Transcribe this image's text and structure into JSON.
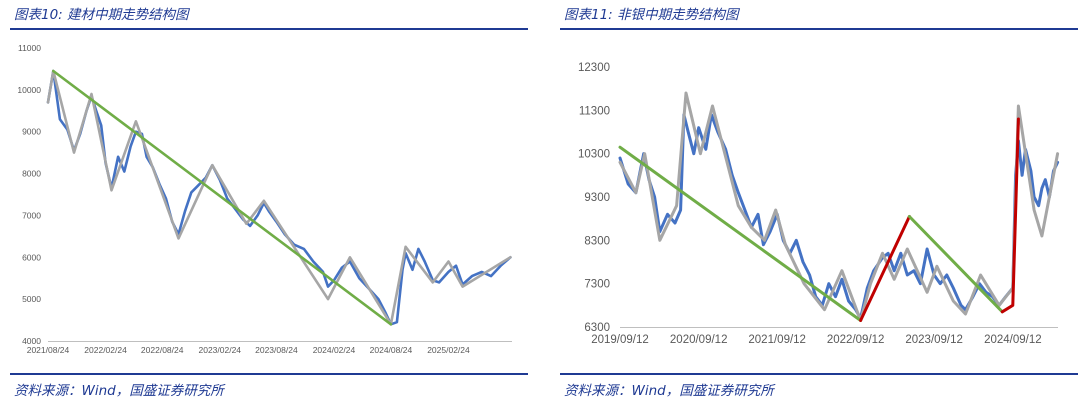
{
  "left": {
    "figure_title": "图表10:  建材中期走势结构图",
    "source": "资料来源：Wind，国盛证券研究所"
  },
  "right": {
    "figure_title": "图表11:  非银中期走势结构图",
    "source": "资料来源：Wind，国盛证券研究所"
  },
  "colors": {
    "price": "#4472c4",
    "structure": "#a6a6a6",
    "trend_down": "#70ad47",
    "trend_up": "#c00000",
    "title": "#1f3a93"
  },
  "chart_data": [
    {
      "type": "line",
      "title": "",
      "x_ticks": [
        "2021/08/24",
        "2022/02/24",
        "2022/08/24",
        "2023/02/24",
        "2023/08/24",
        "2024/02/24",
        "2024/08/24",
        "2025/02/24"
      ],
      "y_ticks": [
        4000,
        5000,
        6000,
        7000,
        8000,
        9000,
        10000,
        11000
      ],
      "ylim": [
        4000,
        11000
      ],
      "xlim": [
        "2021/08/24",
        "2025/09/15"
      ],
      "grid": false,
      "series": [
        {
          "role": "price",
          "color": "#4472c4",
          "points": [
            [
              "2021/08/24",
              9700
            ],
            [
              "2021/09/10",
              10450
            ],
            [
              "2021/10/01",
              9300
            ],
            [
              "2021/10/25",
              9050
            ],
            [
              "2021/11/15",
              8550
            ],
            [
              "2021/12/05",
              8950
            ],
            [
              "2021/12/25",
              9500
            ],
            [
              "2022/01/10",
              9850
            ],
            [
              "2022/01/25",
              9500
            ],
            [
              "2022/02/10",
              9150
            ],
            [
              "2022/02/24",
              8250
            ],
            [
              "2022/03/15",
              7650
            ],
            [
              "2022/04/05",
              8400
            ],
            [
              "2022/04/25",
              8050
            ],
            [
              "2022/05/15",
              8650
            ],
            [
              "2022/06/01",
              9000
            ],
            [
              "2022/06/20",
              8950
            ],
            [
              "2022/07/05",
              8400
            ],
            [
              "2022/07/25",
              8150
            ],
            [
              "2022/08/15",
              7750
            ],
            [
              "2022/09/05",
              7400
            ],
            [
              "2022/09/25",
              6850
            ],
            [
              "2022/10/15",
              6550
            ],
            [
              "2022/11/05",
              7100
            ],
            [
              "2022/11/25",
              7550
            ],
            [
              "2022/12/15",
              7700
            ],
            [
              "2023/01/10",
              7900
            ],
            [
              "2023/01/31",
              8200
            ],
            [
              "2023/02/24",
              7850
            ],
            [
              "2023/03/20",
              7400
            ],
            [
              "2023/04/15",
              7150
            ],
            [
              "2023/05/10",
              6900
            ],
            [
              "2023/06/01",
              6750
            ],
            [
              "2023/06/25",
              7000
            ],
            [
              "2023/07/15",
              7300
            ],
            [
              "2023/07/31",
              7100
            ],
            [
              "2023/08/24",
              6850
            ],
            [
              "2023/09/20",
              6550
            ],
            [
              "2023/10/20",
              6300
            ],
            [
              "2023/11/20",
              6200
            ],
            [
              "2023/12/20",
              5900
            ],
            [
              "2024/01/20",
              5650
            ],
            [
              "2024/02/05",
              5300
            ],
            [
              "2024/02/24",
              5450
            ],
            [
              "2024/03/20",
              5750
            ],
            [
              "2024/04/15",
              5900
            ],
            [
              "2024/05/15",
              5500
            ],
            [
              "2024/06/15",
              5250
            ],
            [
              "2024/07/15",
              5000
            ],
            [
              "2024/08/05",
              4700
            ],
            [
              "2024/08/24",
              4400
            ],
            [
              "2024/09/12",
              4450
            ],
            [
              "2024/09/30",
              5700
            ],
            [
              "2024/10/10",
              6100
            ],
            [
              "2024/11/01",
              5700
            ],
            [
              "2024/11/20",
              6200
            ],
            [
              "2024/12/10",
              5900
            ],
            [
              "2025/01/05",
              5450
            ],
            [
              "2025/01/25",
              5400
            ],
            [
              "2025/02/24",
              5650
            ],
            [
              "2025/03/20",
              5800
            ],
            [
              "2025/04/10",
              5350
            ],
            [
              "2025/05/10",
              5550
            ],
            [
              "2025/06/10",
              5650
            ],
            [
              "2025/07/10",
              5550
            ],
            [
              "2025/08/10",
              5800
            ],
            [
              "2025/09/10",
              6000
            ]
          ]
        },
        {
          "role": "structure",
          "color": "#a6a6a6",
          "points": [
            [
              "2021/08/24",
              9700
            ],
            [
              "2021/09/10",
              10450
            ],
            [
              "2021/11/15",
              8500
            ],
            [
              "2022/01/10",
              9900
            ],
            [
              "2022/03/15",
              7600
            ],
            [
              "2022/06/01",
              9250
            ],
            [
              "2022/10/15",
              6450
            ],
            [
              "2023/01/31",
              8200
            ],
            [
              "2023/05/20",
              6800
            ],
            [
              "2023/07/15",
              7350
            ],
            [
              "2024/02/05",
              5000
            ],
            [
              "2024/04/15",
              6000
            ],
            [
              "2024/08/24",
              4400
            ],
            [
              "2024/10/10",
              6250
            ],
            [
              "2025/01/05",
              5400
            ],
            [
              "2025/02/24",
              5900
            ],
            [
              "2025/04/10",
              5300
            ],
            [
              "2025/09/10",
              6000
            ]
          ]
        },
        {
          "role": "trend",
          "color": "#70ad47",
          "points": [
            [
              "2021/09/10",
              10450
            ],
            [
              "2024/08/24",
              4400
            ]
          ]
        }
      ]
    },
    {
      "type": "line",
      "title": "",
      "x_ticks": [
        "2019/09/12",
        "2020/09/12",
        "2021/09/12",
        "2022/09/12",
        "2023/09/12",
        "2024/09/12"
      ],
      "y_ticks": [
        6300,
        7300,
        8300,
        9300,
        10300,
        11300,
        12300
      ],
      "ylim": [
        6300,
        12300
      ],
      "xlim": [
        "2019/09/12",
        "2025/04/10"
      ],
      "grid": false,
      "series": [
        {
          "role": "price",
          "color": "#4472c4",
          "points": [
            [
              "2019/09/12",
              10200
            ],
            [
              "2019/10/20",
              9600
            ],
            [
              "2019/11/25",
              9400
            ],
            [
              "2019/12/31",
              10300
            ],
            [
              "2020/01/25",
              9700
            ],
            [
              "2020/02/20",
              9300
            ],
            [
              "2020/03/15",
              8500
            ],
            [
              "2020/04/20",
              8900
            ],
            [
              "2020/05/25",
              8700
            ],
            [
              "2020/06/20",
              9000
            ],
            [
              "2020/07/05",
              11200
            ],
            [
              "2020/07/25",
              10800
            ],
            [
              "2020/08/20",
              10300
            ],
            [
              "2020/09/12",
              10900
            ],
            [
              "2020/10/15",
              10400
            ],
            [
              "2020/11/10",
              11200
            ],
            [
              "2020/12/10",
              10800
            ],
            [
              "2021/01/15",
              10400
            ],
            [
              "2021/02/15",
              9800
            ],
            [
              "2021/03/15",
              9400
            ],
            [
              "2021/04/15",
              9000
            ],
            [
              "2021/05/15",
              8600
            ],
            [
              "2021/06/15",
              8900
            ],
            [
              "2021/07/10",
              8200
            ],
            [
              "2021/08/10",
              8500
            ],
            [
              "2021/09/12",
              8900
            ],
            [
              "2021/10/10",
              8300
            ],
            [
              "2021/11/10",
              8000
            ],
            [
              "2021/12/10",
              8300
            ],
            [
              "2022/01/10",
              7800
            ],
            [
              "2022/02/10",
              7500
            ],
            [
              "2022/03/10",
              7000
            ],
            [
              "2022/04/10",
              6800
            ],
            [
              "2022/05/10",
              7300
            ],
            [
              "2022/06/10",
              7000
            ],
            [
              "2022/07/10",
              7400
            ],
            [
              "2022/08/10",
              6900
            ],
            [
              "2022/09/12",
              6700
            ],
            [
              "2022/10/05",
              6500
            ],
            [
              "2022/11/05",
              7200
            ],
            [
              "2022/12/05",
              7600
            ],
            [
              "2023/01/15",
              7900
            ],
            [
              "2023/02/10",
              8000
            ],
            [
              "2023/03/10",
              7600
            ],
            [
              "2023/04/10",
              8000
            ],
            [
              "2023/05/10",
              7500
            ],
            [
              "2023/06/10",
              7600
            ],
            [
              "2023/07/10",
              7300
            ],
            [
              "2023/08/10",
              8100
            ],
            [
              "2023/09/12",
              7500
            ],
            [
              "2023/10/10",
              7300
            ],
            [
              "2023/11/10",
              7500
            ],
            [
              "2023/12/10",
              7200
            ],
            [
              "2024/01/15",
              6800
            ],
            [
              "2024/02/05",
              6700
            ],
            [
              "2024/03/10",
              7000
            ],
            [
              "2024/04/10",
              7300
            ],
            [
              "2024/05/10",
              7100
            ],
            [
              "2024/06/10",
              7000
            ],
            [
              "2024/07/10",
              6800
            ],
            [
              "2024/08/10",
              7000
            ],
            [
              "2024/09/12",
              7200
            ],
            [
              "2024/09/25",
              9800
            ],
            [
              "2024/10/08",
              10600
            ],
            [
              "2024/10/25",
              9800
            ],
            [
              "2024/11/10",
              10400
            ],
            [
              "2024/12/05",
              9900
            ],
            [
              "2024/12/20",
              9300
            ],
            [
              "2025/01/10",
              9100
            ],
            [
              "2025/01/25",
              9500
            ],
            [
              "2025/02/10",
              9700
            ],
            [
              "2025/03/01",
              9300
            ],
            [
              "2025/03/20",
              9900
            ],
            [
              "2025/04/08",
              10100
            ]
          ]
        },
        {
          "role": "structure",
          "color": "#a6a6a6",
          "points": [
            [
              "2019/09/12",
              10100
            ],
            [
              "2019/11/25",
              9400
            ],
            [
              "2020/01/05",
              10300
            ],
            [
              "2020/03/15",
              8300
            ],
            [
              "2020/06/01",
              9100
            ],
            [
              "2020/07/15",
              11700
            ],
            [
              "2020/09/20",
              10300
            ],
            [
              "2020/11/15",
              11400
            ],
            [
              "2021/03/15",
              9100
            ],
            [
              "2021/05/15",
              8600
            ],
            [
              "2021/07/15",
              8300
            ],
            [
              "2021/09/05",
              9000
            ],
            [
              "2021/10/20",
              8200
            ],
            [
              "2022/01/15",
              7300
            ],
            [
              "2022/04/20",
              6700
            ],
            [
              "2022/07/10",
              7600
            ],
            [
              "2022/10/05",
              6450
            ],
            [
              "2022/11/20",
              7300
            ],
            [
              "2023/01/15",
              8000
            ],
            [
              "2023/03/10",
              7400
            ],
            [
              "2023/05/10",
              8100
            ],
            [
              "2023/08/10",
              7100
            ],
            [
              "2023/09/25",
              7700
            ],
            [
              "2023/12/10",
              6900
            ],
            [
              "2024/02/05",
              6600
            ],
            [
              "2024/04/15",
              7500
            ],
            [
              "2024/07/10",
              6800
            ],
            [
              "2024/09/12",
              7200
            ],
            [
              "2024/10/08",
              11400
            ],
            [
              "2024/12/20",
              9000
            ],
            [
              "2025/01/25",
              8400
            ],
            [
              "2025/04/08",
              10300
            ]
          ]
        },
        {
          "role": "trend",
          "color": "#70ad47",
          "points": [
            [
              "2019/09/12",
              10450
            ],
            [
              "2022/10/05",
              6450
            ]
          ]
        },
        {
          "role": "trend",
          "color": "#c00000",
          "points": [
            [
              "2022/10/05",
              6450
            ],
            [
              "2023/05/20",
              8850
            ]
          ]
        },
        {
          "role": "trend",
          "color": "#70ad47",
          "points": [
            [
              "2023/05/20",
              8850
            ],
            [
              "2024/07/25",
              6650
            ]
          ]
        },
        {
          "role": "trend",
          "color": "#c00000",
          "points": [
            [
              "2024/07/25",
              6650
            ],
            [
              "2024/09/12",
              6800
            ],
            [
              "2024/10/08",
              11100
            ]
          ]
        }
      ]
    }
  ]
}
